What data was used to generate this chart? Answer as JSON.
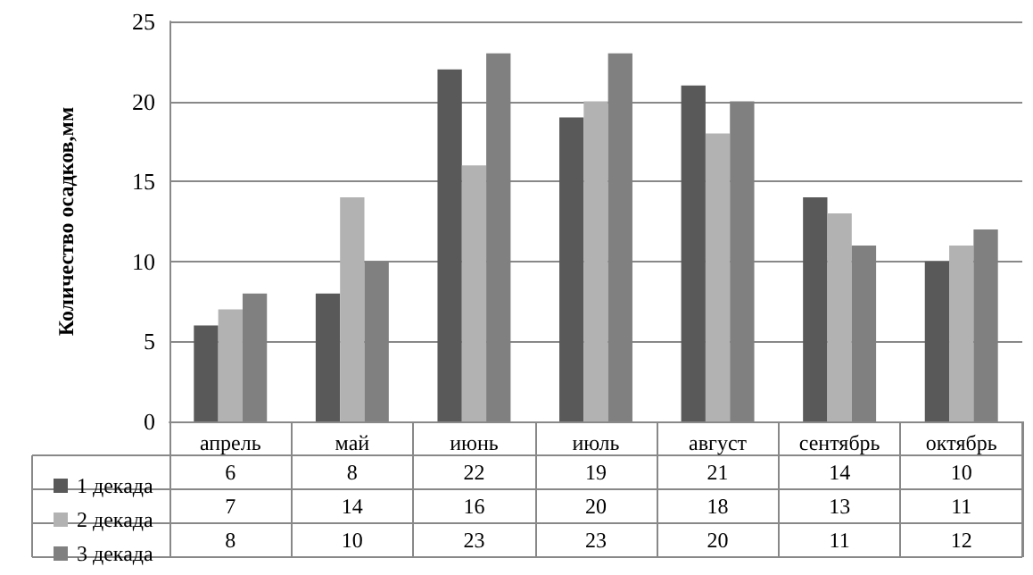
{
  "chart_data": {
    "type": "bar",
    "ylabel": "Количество осадков,мм",
    "categories": [
      "апрель",
      "май",
      "июнь",
      "июль",
      "август",
      "сентябрь",
      "октябрь"
    ],
    "series": [
      {
        "name": "1 декада",
        "color": "#595959",
        "values": [
          6,
          8,
          22,
          19,
          21,
          14,
          10
        ]
      },
      {
        "name": "2 декада",
        "color": "#b2b2b2",
        "values": [
          7,
          14,
          16,
          20,
          18,
          13,
          11
        ]
      },
      {
        "name": "3 декада",
        "color": "#808080",
        "values": [
          8,
          10,
          23,
          23,
          20,
          11,
          12
        ]
      }
    ],
    "ylim": [
      0,
      25
    ],
    "yticks": [
      0,
      5,
      10,
      15,
      20,
      25
    ],
    "grid": "y",
    "legend": "bottom left",
    "data_labels": true
  }
}
